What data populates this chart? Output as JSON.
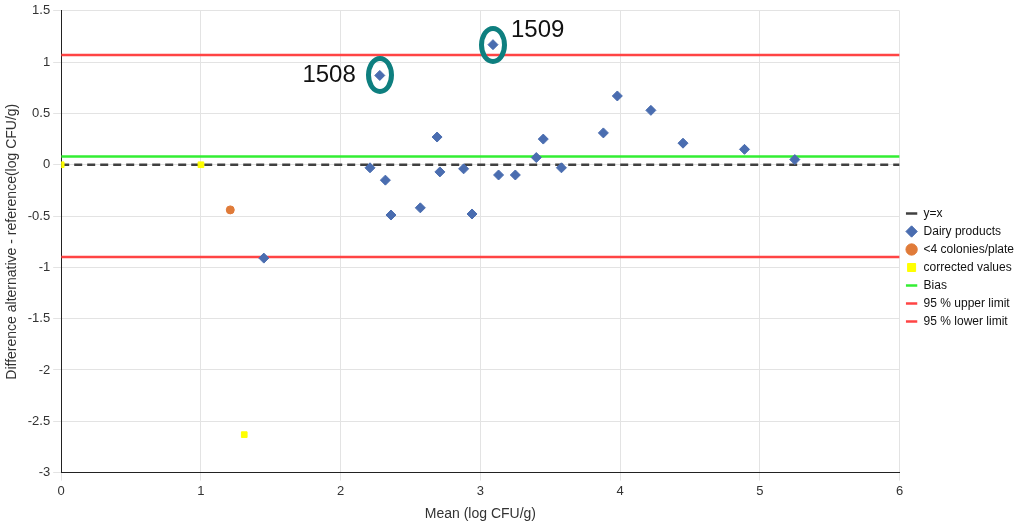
{
  "chart_data": {
    "type": "scatter",
    "xlabel": "Mean (log CFU/g)",
    "ylabel": "Difference alternative - reference(log CFU/g)",
    "xlim": [
      0,
      6
    ],
    "xticks": [
      0,
      1,
      2,
      3,
      4,
      5,
      6
    ],
    "ylim": [
      -3,
      1.5
    ],
    "yticks": [
      -3,
      -2.5,
      -2,
      -1.5,
      -1,
      -0.5,
      0,
      0.5,
      1,
      1.5
    ],
    "grid": true,
    "legend": "right",
    "series": [
      {
        "name": "y=x",
        "type": "line",
        "color": "#404040",
        "line_style": "dashed",
        "marker": "none",
        "x": [
          0,
          6
        ],
        "values": [
          0,
          0
        ]
      },
      {
        "name": "Dairy products",
        "color": "#4a6db0",
        "marker": "diamond",
        "x": [
          2.28,
          3.09,
          2.21,
          2.32,
          2.36,
          2.57,
          2.69,
          2.71,
          2.88,
          2.94,
          3.13,
          3.25,
          1.45,
          3.4,
          3.45,
          3.58,
          3.88,
          3.98,
          4.22,
          4.45,
          4.89,
          5.25
        ],
        "values": [
          0.87,
          1.17,
          -0.03,
          -0.15,
          -0.49,
          -0.42,
          0.27,
          -0.07,
          -0.04,
          -0.48,
          -0.1,
          -0.1,
          -0.91,
          0.07,
          0.25,
          -0.03,
          0.31,
          0.67,
          0.53,
          0.21,
          0.15,
          0.05
        ]
      },
      {
        "name": "<4 colonies/plate",
        "color": "#e07b39",
        "marker": "circle",
        "x": [
          1.21
        ],
        "values": [
          -0.44
        ]
      },
      {
        "name": "corrected values",
        "color": "#ffff00",
        "marker": "square",
        "x": [
          0,
          1,
          1.31
        ],
        "values": [
          0,
          0,
          -2.63
        ]
      },
      {
        "name": "Bias",
        "type": "line",
        "color": "#33ee33",
        "line_style": "solid",
        "marker": "none",
        "x": [
          0,
          6
        ],
        "values": [
          0.08,
          0.08
        ]
      },
      {
        "name": "95 % upper limit",
        "type": "line",
        "color": "#ff4444",
        "line_style": "solid",
        "marker": "none",
        "x": [
          0,
          6
        ],
        "values": [
          1.07,
          1.07
        ]
      },
      {
        "name": "95 % lower limit",
        "type": "line",
        "color": "#ff4444",
        "line_style": "solid",
        "marker": "none",
        "x": [
          0,
          6
        ],
        "values": [
          -0.9,
          -0.9
        ]
      }
    ],
    "annotations": [
      {
        "text": "1508",
        "x": 2.28,
        "y": 0.87
      },
      {
        "text": "1509",
        "x": 3.09,
        "y": 1.17
      }
    ]
  }
}
